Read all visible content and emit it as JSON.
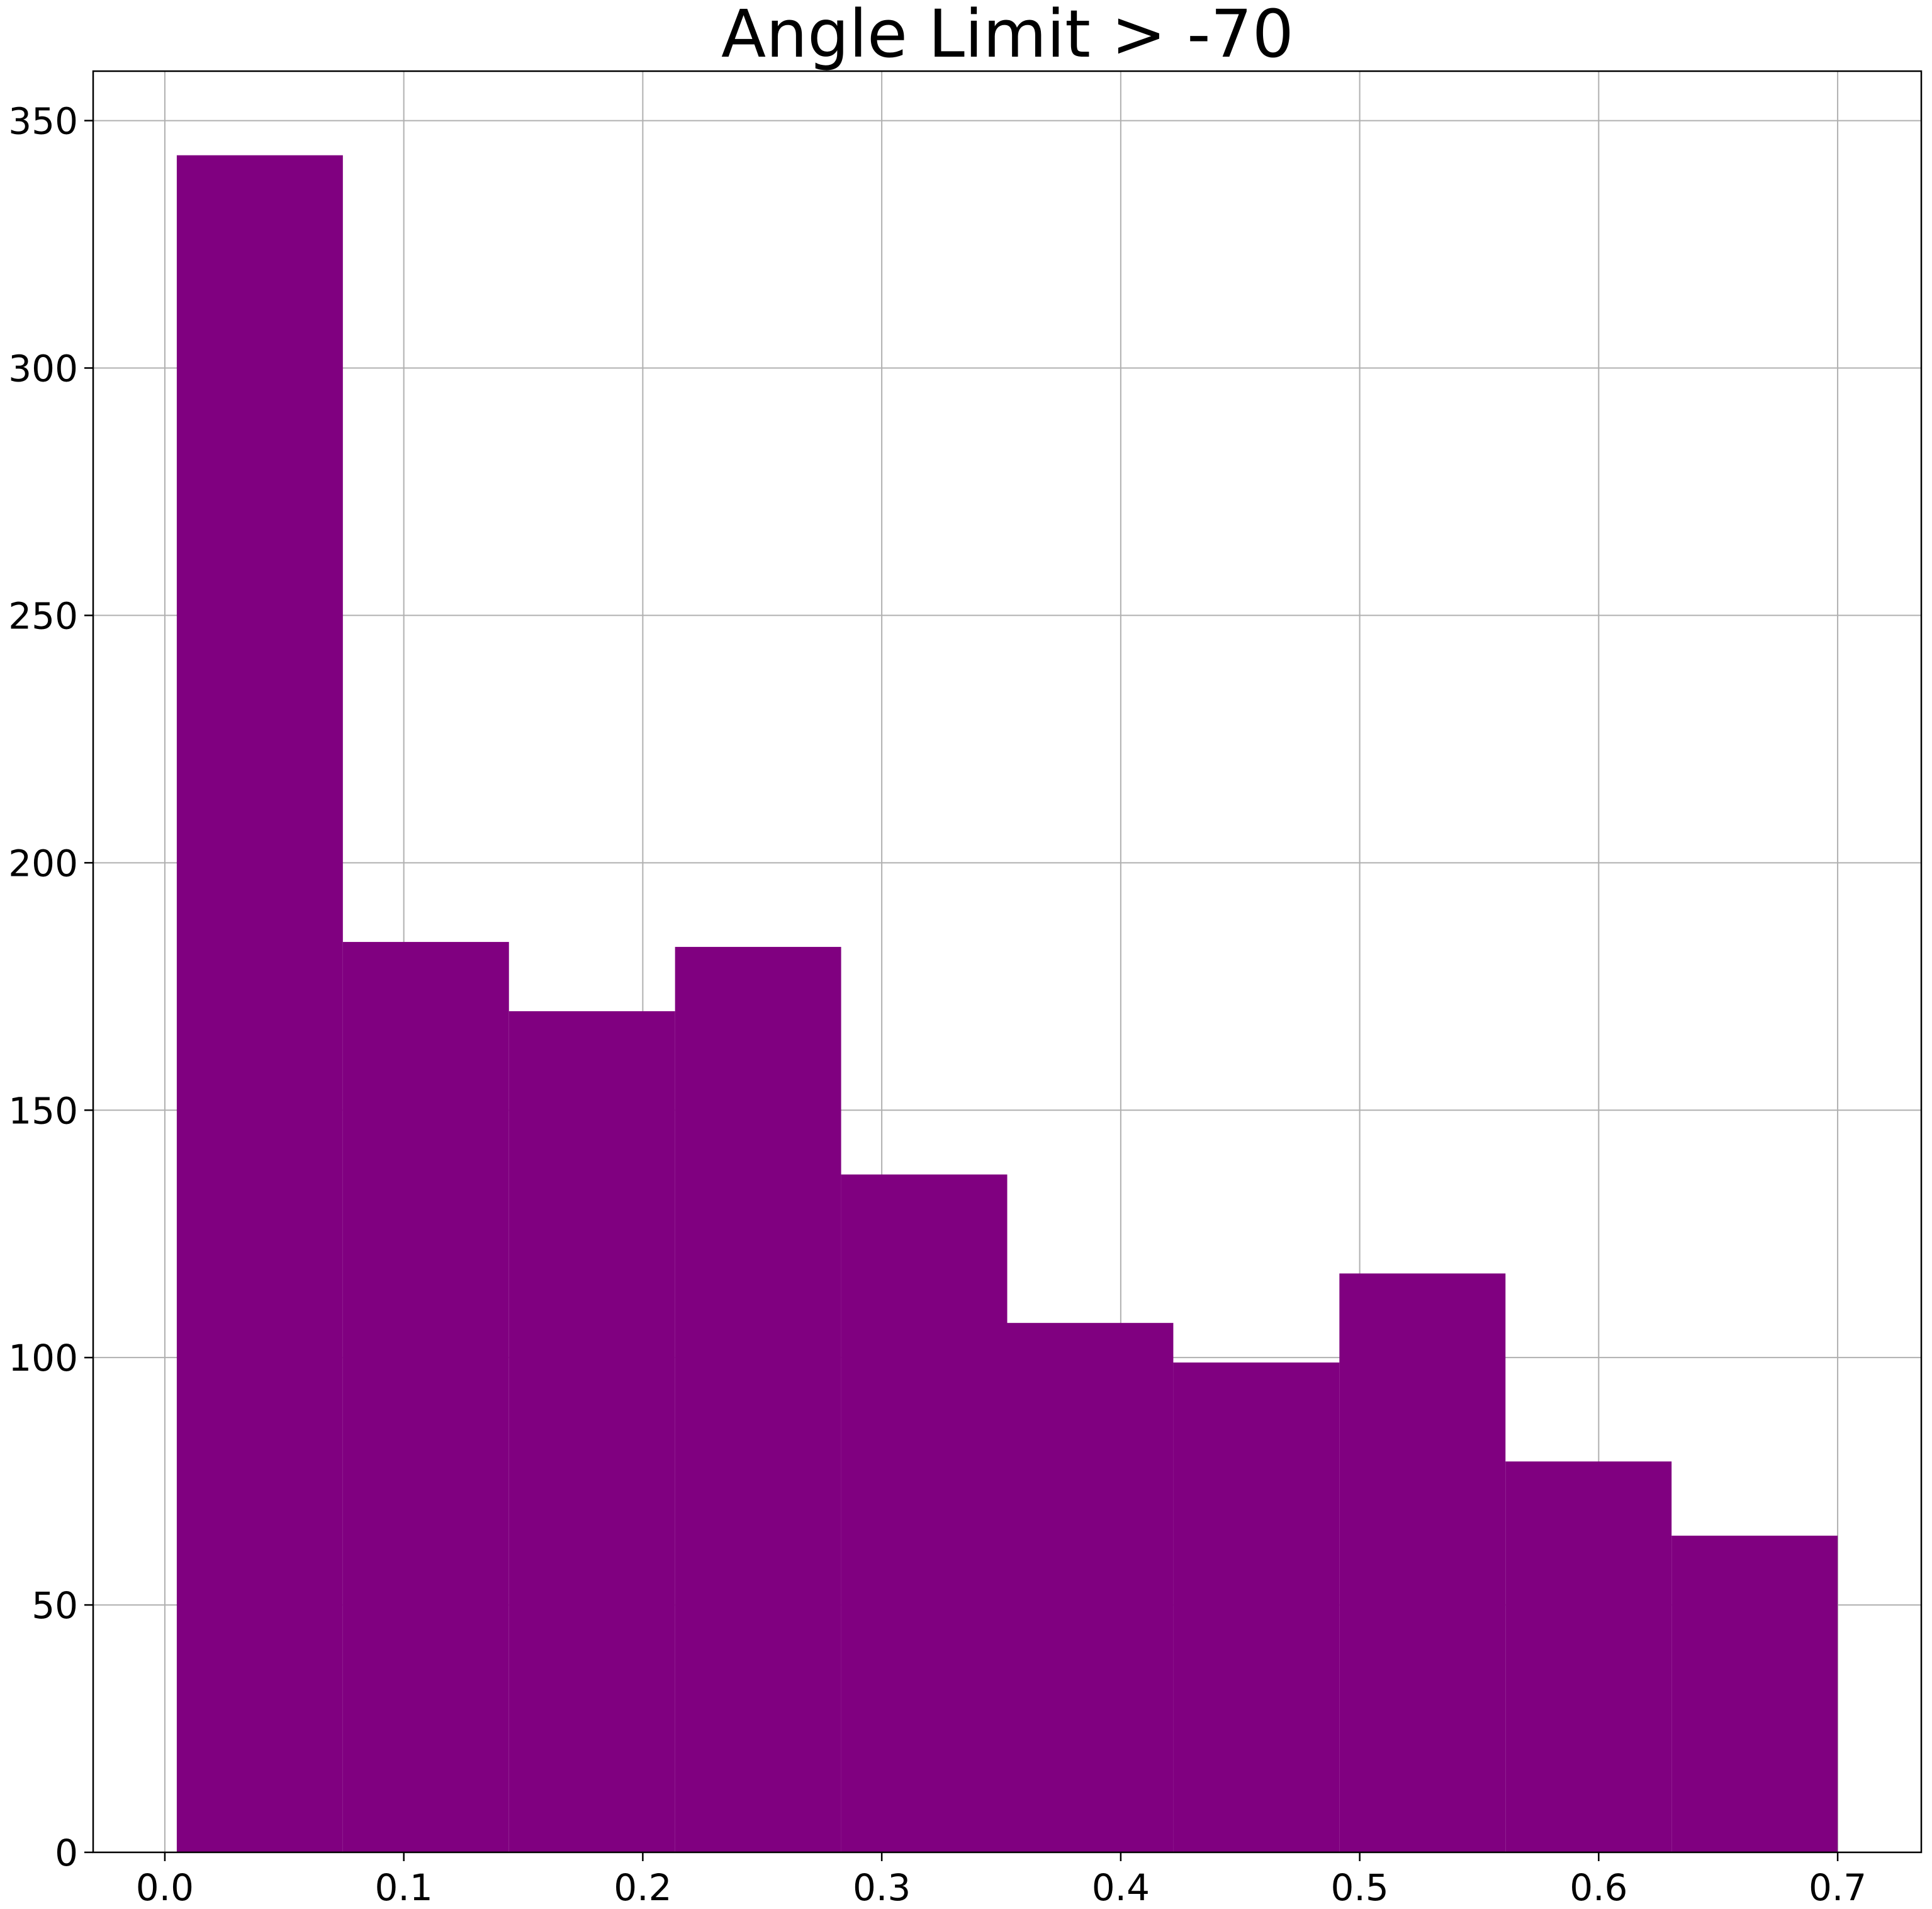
{
  "chart_data": {
    "type": "bar",
    "title": "Angle Limit > -70",
    "xlabel": "",
    "ylabel": "",
    "bin_edges": [
      0.005,
      0.0745,
      0.144,
      0.2135,
      0.283,
      0.3525,
      0.422,
      0.4915,
      0.561,
      0.6305,
      0.7
    ],
    "values": [
      343,
      184,
      170,
      183,
      137,
      107,
      99,
      117,
      79,
      64
    ],
    "xlim": [
      -0.03,
      0.735
    ],
    "ylim": [
      0,
      360
    ],
    "xticks": [
      0.0,
      0.1,
      0.2,
      0.3,
      0.4,
      0.5,
      0.6,
      0.7
    ],
    "xtick_labels": [
      "0.0",
      "0.1",
      "0.2",
      "0.3",
      "0.4",
      "0.5",
      "0.6",
      "0.7"
    ],
    "yticks": [
      0,
      50,
      100,
      150,
      200,
      250,
      300,
      350
    ],
    "ytick_labels": [
      "0",
      "50",
      "100",
      "150",
      "200",
      "250",
      "300",
      "350"
    ],
    "bar_color": "#800080",
    "grid": true
  }
}
